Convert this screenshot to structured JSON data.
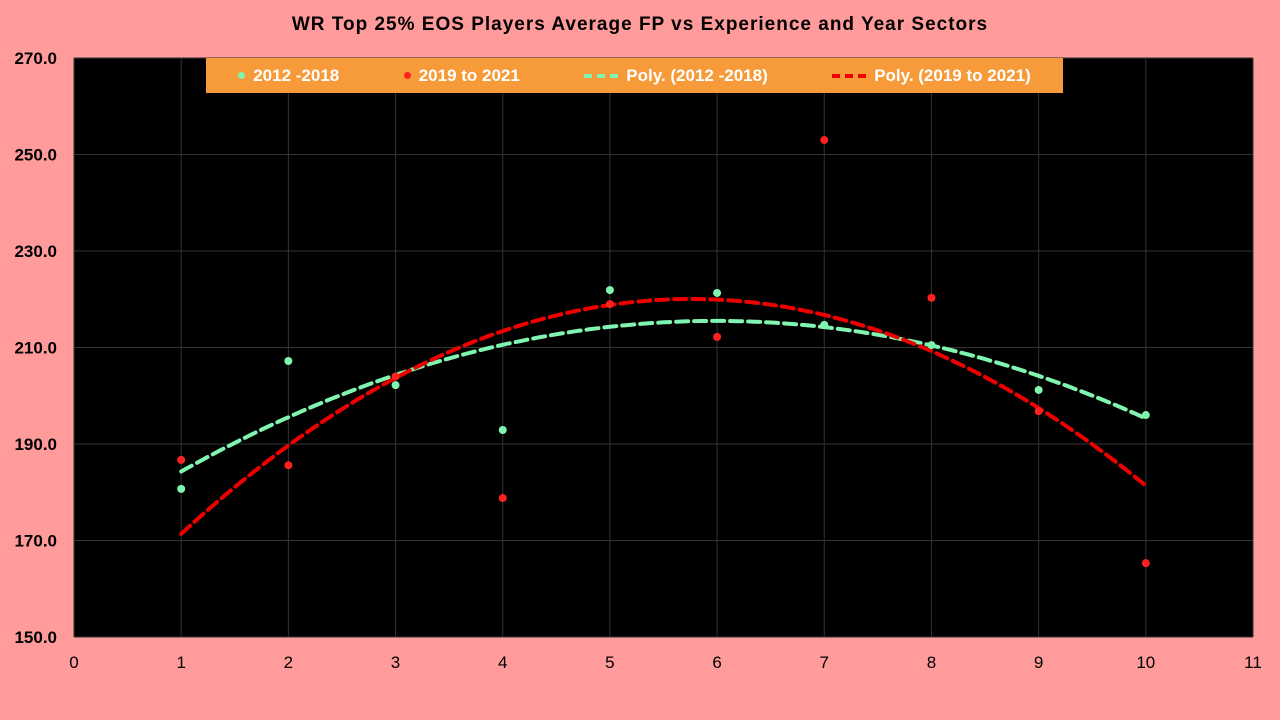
{
  "chart_data": {
    "type": "scatter",
    "title": "WR Top 25% EOS Players Average FP vs Experience and Year Sectors",
    "xlabel": "",
    "ylabel": "",
    "xlim": [
      0,
      11
    ],
    "ylim": [
      150,
      270
    ],
    "x_ticks": [
      "0",
      "1",
      "2",
      "3",
      "4",
      "5",
      "6",
      "7",
      "8",
      "9",
      "10",
      "11"
    ],
    "y_ticks": [
      "150.0",
      "170.0",
      "190.0",
      "210.0",
      "230.0",
      "250.0",
      "270.0"
    ],
    "grid": true,
    "legend_position": "top",
    "series": [
      {
        "name": "2012 -2018",
        "color": "#7FF5B0",
        "x": [
          1,
          2,
          3,
          4,
          5,
          6,
          7,
          8,
          9,
          10
        ],
        "values": [
          180.7,
          207.2,
          202.2,
          192.9,
          221.9,
          221.3,
          214.7,
          210.5,
          201.2,
          196.0
        ]
      },
      {
        "name": "2019 to 2021",
        "color": "#FF2020",
        "x": [
          1,
          2,
          3,
          4,
          5,
          6,
          7,
          8,
          9,
          10
        ],
        "values": [
          186.7,
          185.6,
          204.0,
          178.8,
          219.0,
          212.2,
          253.0,
          220.3,
          196.8,
          165.3
        ]
      }
    ],
    "trendlines": [
      {
        "name": "Poly. (2012 -2018)",
        "series": 0,
        "order": 2,
        "color": "#7FF5B0"
      },
      {
        "name": "Poly. (2019 to 2021)",
        "series": 1,
        "order": 2,
        "color": "#EE0000"
      }
    ]
  }
}
